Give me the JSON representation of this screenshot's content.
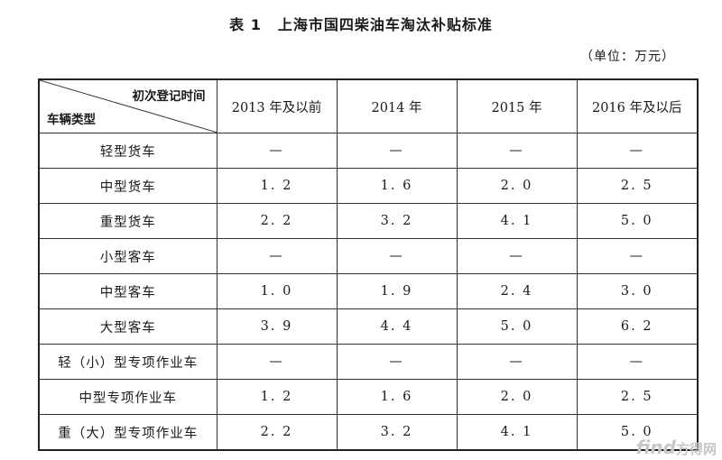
{
  "caption": {
    "table_no": "表 1",
    "title": "上海市国四柴油车淘汰补贴标准"
  },
  "unit": "（单位：万元）",
  "header": {
    "corner_top": "初次登记时间",
    "corner_bottom": "车辆类型",
    "columns": [
      "2013 年及以前",
      "2014 年",
      "2015 年",
      "2016 年及以后"
    ]
  },
  "rows": [
    {
      "type": "轻型货车",
      "values": [
        "—",
        "—",
        "—",
        "—"
      ]
    },
    {
      "type": "中型货车",
      "values": [
        "1. 2",
        "1. 6",
        "2. 0",
        "2. 5"
      ]
    },
    {
      "type": "重型货车",
      "values": [
        "2. 2",
        "3. 2",
        "4. 1",
        "5. 0"
      ]
    },
    {
      "type": "小型客车",
      "values": [
        "—",
        "—",
        "—",
        "—"
      ]
    },
    {
      "type": "中型客车",
      "values": [
        "1. 0",
        "1. 9",
        "2. 4",
        "3. 0"
      ]
    },
    {
      "type": "大型客车",
      "values": [
        "3. 9",
        "4. 4",
        "5. 0",
        "6. 2"
      ]
    },
    {
      "type": "轻（小）型专项作业车",
      "values": [
        "—",
        "—",
        "—",
        "—"
      ]
    },
    {
      "type": "中型专项作业车",
      "values": [
        "1. 2",
        "1. 6",
        "2. 0",
        "2. 5"
      ]
    },
    {
      "type": "重（大）型专项作业车",
      "values": [
        "2. 2",
        "3. 2",
        "4. 1",
        "5. 0"
      ]
    }
  ],
  "watermark": {
    "main": "find",
    "sub": "方得网"
  }
}
